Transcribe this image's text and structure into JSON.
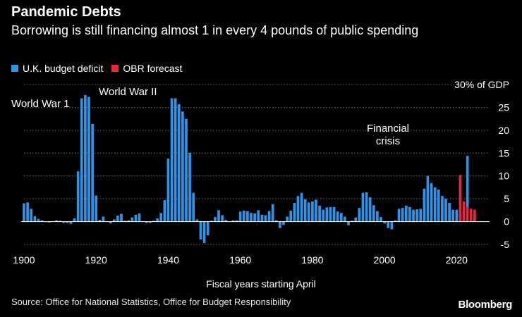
{
  "header": {
    "title": "Pandemic Debts",
    "subtitle": "Borrowing is still financing almost 1 in every 4 pounds of public spending"
  },
  "legend": [
    {
      "label": "U.K. budget deficit",
      "color": "#2f93e8"
    },
    {
      "label": "OBR forecast",
      "color": "#e8283a"
    }
  ],
  "footer": {
    "source": "Source: Office for National Statistics, Office for Budget Responsibility",
    "brand": "Bloomberg"
  },
  "chart_data": {
    "type": "bar",
    "title": "Pandemic Debts",
    "xlabel": "Fiscal years starting April",
    "ylabel": "",
    "ylim": [
      -5,
      30
    ],
    "yticks": [
      -5,
      0,
      5,
      10,
      15,
      20,
      25,
      30
    ],
    "ytick_labels": [
      "-5",
      "0",
      "5",
      "10",
      "15",
      "20",
      "25",
      "30% of GDP"
    ],
    "xlim": [
      1900,
      2026
    ],
    "xticks": [
      1900,
      1920,
      1940,
      1960,
      1980,
      2000,
      2020
    ],
    "grid": true,
    "annotations": [
      {
        "text": "World War 1",
        "year": 1914
      },
      {
        "text": "World War II",
        "year": 1940
      },
      {
        "text": "Financial crisis",
        "year": 2009
      }
    ],
    "series": [
      {
        "name": "U.K. budget deficit",
        "color": "#2f93e8",
        "start_year": 1900,
        "values": [
          4.0,
          4.2,
          2.8,
          1.2,
          0.6,
          0.3,
          0.0,
          -0.2,
          0.1,
          0.3,
          0.2,
          -0.3,
          -0.3,
          -0.5,
          0.7,
          11.0,
          27.0,
          27.7,
          27.3,
          21.4,
          5.7,
          0.4,
          1.1,
          0.1,
          -0.4,
          0.5,
          1.3,
          1.7,
          0.2,
          0.3,
          0.9,
          1.5,
          1.8,
          0.1,
          -0.3,
          -0.3,
          0.2,
          0.7,
          1.9,
          4.7,
          13.8,
          27.0,
          27.0,
          25.7,
          24.1,
          22.5,
          15.1,
          6.3,
          0.5,
          -3.9,
          -4.7,
          -3.0,
          0.2,
          1.0,
          2.5,
          1.4,
          0.4,
          0.0,
          0.3,
          0.3,
          2.2,
          2.4,
          2.3,
          1.9,
          1.8,
          2.5,
          1.5,
          1.4,
          2.3,
          3.8,
          0.3,
          -1.4,
          -0.7,
          1.1,
          2.4,
          4.1,
          5.6,
          6.3,
          4.9,
          4.2,
          4.4,
          4.8,
          3.5,
          2.6,
          3.1,
          3.2,
          3.2,
          2.2,
          1.9,
          1.1,
          -0.8,
          0.2,
          0.9,
          3.0,
          6.3,
          6.4,
          5.3,
          3.6,
          2.3,
          1.0,
          -0.4,
          -1.4,
          -1.7,
          0.3,
          2.8,
          3.0,
          3.5,
          3.2,
          2.6,
          2.7,
          2.8,
          7.2,
          10.0,
          8.4,
          7.5,
          7.0,
          5.6,
          5.0,
          4.1,
          2.6,
          2.6,
          1.8,
          2.2,
          14.4
        ]
      },
      {
        "name": "OBR forecast",
        "color": "#e8283a",
        "start_year": 2021,
        "values": [
          10.2,
          4.4,
          3.2,
          2.8,
          2.6
        ]
      }
    ]
  }
}
